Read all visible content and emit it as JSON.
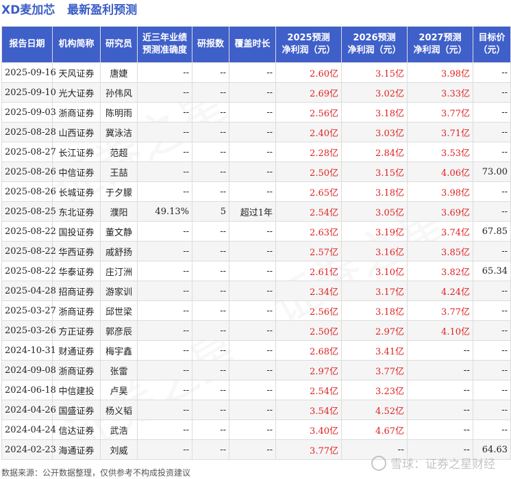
{
  "title": {
    "stock": "XD麦加芯",
    "subtitle": "最新盈利预测"
  },
  "headers": [
    "报告日期",
    "机构简称",
    "研究员",
    "近三年业绩\n预测准确度",
    "研报数",
    "覆盖时长",
    "2025预测\n净利润（元）",
    "2026预测\n净利润（元）",
    "2027预测\n净利润（元）",
    "目标价\n（元）"
  ],
  "rows": [
    [
      "2025-09-16",
      "天风证券",
      "唐婕",
      "--",
      "--",
      "--",
      "2.60亿",
      "3.15亿",
      "3.98亿",
      "--"
    ],
    [
      "2025-09-10",
      "光大证券",
      "孙伟风",
      "--",
      "--",
      "--",
      "2.69亿",
      "3.02亿",
      "3.33亿",
      "--"
    ],
    [
      "2025-09-03",
      "浙商证券",
      "陈明雨",
      "--",
      "--",
      "--",
      "2.56亿",
      "3.18亿",
      "3.77亿",
      "--"
    ],
    [
      "2025-08-28",
      "山西证券",
      "冀泳洁",
      "--",
      "--",
      "--",
      "2.40亿",
      "3.03亿",
      "3.71亿",
      "--"
    ],
    [
      "2025-08-27",
      "长江证券",
      "范超",
      "--",
      "--",
      "--",
      "2.28亿",
      "2.84亿",
      "3.53亿",
      "--"
    ],
    [
      "2025-08-26",
      "中信证券",
      "王喆",
      "--",
      "--",
      "--",
      "2.50亿",
      "3.15亿",
      "4.06亿",
      "73.00"
    ],
    [
      "2025-08-26",
      "长城证券",
      "于夕朦",
      "--",
      "--",
      "--",
      "2.65亿",
      "3.18亿",
      "3.98亿",
      "--"
    ],
    [
      "2025-08-25",
      "东北证券",
      "濮阳",
      "49.13%",
      "5",
      "超过1年",
      "2.54亿",
      "3.05亿",
      "3.69亿",
      "--"
    ],
    [
      "2025-08-22",
      "国投证券",
      "董文静",
      "--",
      "--",
      "--",
      "2.63亿",
      "3.19亿",
      "3.74亿",
      "67.85"
    ],
    [
      "2025-08-22",
      "华西证券",
      "戚舒扬",
      "--",
      "--",
      "--",
      "2.57亿",
      "3.16亿",
      "3.85亿",
      "--"
    ],
    [
      "2025-08-22",
      "华泰证券",
      "庄汀洲",
      "--",
      "--",
      "--",
      "2.61亿",
      "3.10亿",
      "3.82亿",
      "65.34"
    ],
    [
      "2025-04-28",
      "招商证券",
      "游家训",
      "--",
      "--",
      "--",
      "2.34亿",
      "3.17亿",
      "4.24亿",
      "--"
    ],
    [
      "2025-03-27",
      "浙商证券",
      "邱世梁",
      "--",
      "--",
      "--",
      "2.56亿",
      "3.18亿",
      "3.77亿",
      "--"
    ],
    [
      "2025-03-26",
      "方正证券",
      "郭彦辰",
      "--",
      "--",
      "--",
      "2.50亿",
      "2.97亿",
      "4.10亿",
      "--"
    ],
    [
      "2024-10-31",
      "财通证券",
      "梅宇鑫",
      "--",
      "--",
      "--",
      "2.68亿",
      "3.41亿",
      "--",
      "--"
    ],
    [
      "2024-09-08",
      "浙商证券",
      "张雷",
      "--",
      "--",
      "--",
      "2.97亿",
      "3.77亿",
      "--",
      "--"
    ],
    [
      "2024-06-18",
      "中信建投",
      "卢昊",
      "--",
      "--",
      "--",
      "2.54亿",
      "3.23亿",
      "--",
      "--"
    ],
    [
      "2024-04-26",
      "国盛证券",
      "杨义韬",
      "--",
      "--",
      "--",
      "3.54亿",
      "4.52亿",
      "--",
      "--"
    ],
    [
      "2024-04-24",
      "信达证券",
      "武浩",
      "--",
      "--",
      "--",
      "3.40亿",
      "4.67亿",
      "--",
      "--"
    ],
    [
      "2024-02-23",
      "海通证券",
      "刘威",
      "--",
      "--",
      "--",
      "3.77亿",
      "--",
      "--",
      "64.63"
    ]
  ],
  "footer": "数据来源：公开数据整理，仅供参考不构成投资建议",
  "brand": {
    "name": "雪球：证券之星财经",
    "icon": "snowball-logo-icon"
  },
  "watermark": "证券之星",
  "colors": {
    "header_bg": "#3f5fc9",
    "title": "#3b5ec6",
    "forecast_value": "#e02020"
  }
}
